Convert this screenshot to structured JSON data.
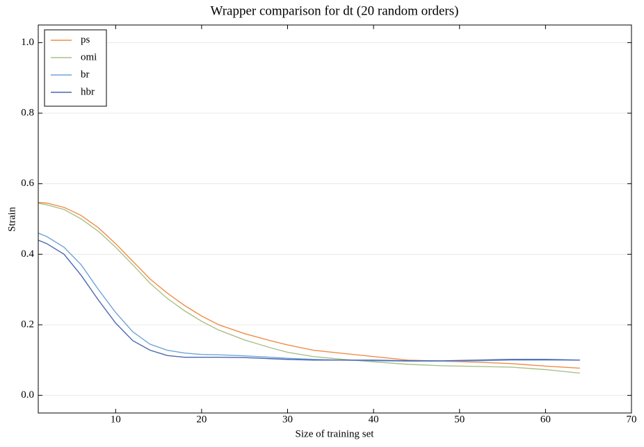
{
  "chart_data": {
    "type": "line",
    "title": "Wrapper comparison for dt (20 random orders)",
    "x_label": "Size of training set",
    "y_label": "Strain",
    "x": [
      1,
      2,
      4,
      6,
      8,
      10,
      12,
      14,
      16,
      18,
      20,
      22,
      25,
      28,
      30,
      33,
      36,
      40,
      44,
      48,
      52,
      56,
      60,
      64
    ],
    "series": [
      {
        "name": "ps",
        "color": "#f08c46",
        "values": [
          0.547,
          0.545,
          0.533,
          0.51,
          0.475,
          0.43,
          0.38,
          0.33,
          0.29,
          0.255,
          0.225,
          0.2,
          0.175,
          0.155,
          0.143,
          0.128,
          0.12,
          0.11,
          0.1,
          0.097,
          0.094,
          0.09,
          0.083,
          0.077
        ]
      },
      {
        "name": "omi",
        "color": "#a9c087",
        "values": [
          0.545,
          0.54,
          0.527,
          0.5,
          0.465,
          0.42,
          0.37,
          0.318,
          0.275,
          0.24,
          0.21,
          0.185,
          0.157,
          0.135,
          0.122,
          0.11,
          0.103,
          0.095,
          0.088,
          0.084,
          0.082,
          0.08,
          0.073,
          0.063
        ]
      },
      {
        "name": "br",
        "color": "#6fa3d6",
        "values": [
          0.46,
          0.45,
          0.42,
          0.37,
          0.3,
          0.235,
          0.18,
          0.145,
          0.128,
          0.12,
          0.116,
          0.115,
          0.112,
          0.108,
          0.105,
          0.102,
          0.1,
          0.098,
          0.097,
          0.097,
          0.098,
          0.1,
          0.1,
          0.1
        ]
      },
      {
        "name": "hbr",
        "color": "#4a66b0",
        "values": [
          0.44,
          0.43,
          0.4,
          0.34,
          0.27,
          0.205,
          0.155,
          0.128,
          0.113,
          0.108,
          0.108,
          0.108,
          0.107,
          0.104,
          0.102,
          0.1,
          0.1,
          0.1,
          0.098,
          0.098,
          0.1,
          0.102,
          0.102,
          0.1
        ]
      }
    ],
    "xlim": [
      1,
      70
    ],
    "xticks": [
      10,
      20,
      30,
      40,
      50,
      60,
      70
    ],
    "ylim": [
      -0.05,
      1.05
    ],
    "yticks": [
      {
        "value": 0,
        "label": "0.0"
      },
      0.2,
      0.4,
      0.6,
      0.8,
      {
        "value": 1,
        "label": "1.0"
      }
    ],
    "grid": true,
    "legend": "upper left"
  }
}
